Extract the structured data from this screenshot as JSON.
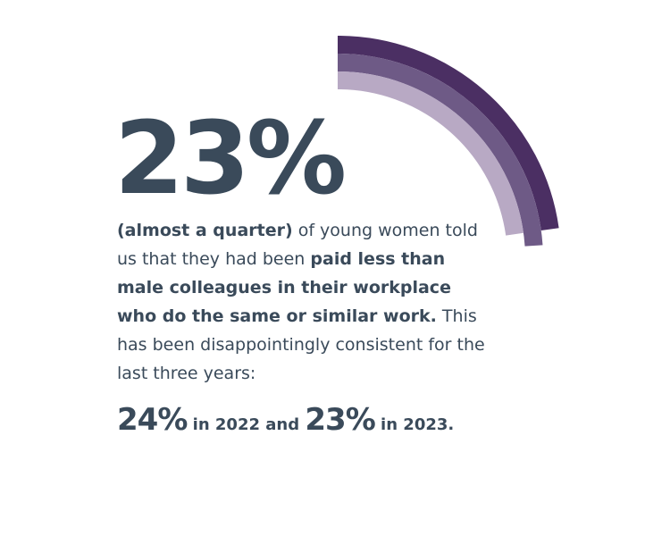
{
  "stat": "23%",
  "paragraph": [
    "(almost a quarter)",
    " of young women told us that they had been ",
    "paid less than male colleagues in their workplace who do the same or similar work.",
    " This has been disappointingly consistent for the last three years:"
  ],
  "footer": [
    "24%",
    " in 2022 and ",
    "23%",
    " in 2023."
  ]
}
